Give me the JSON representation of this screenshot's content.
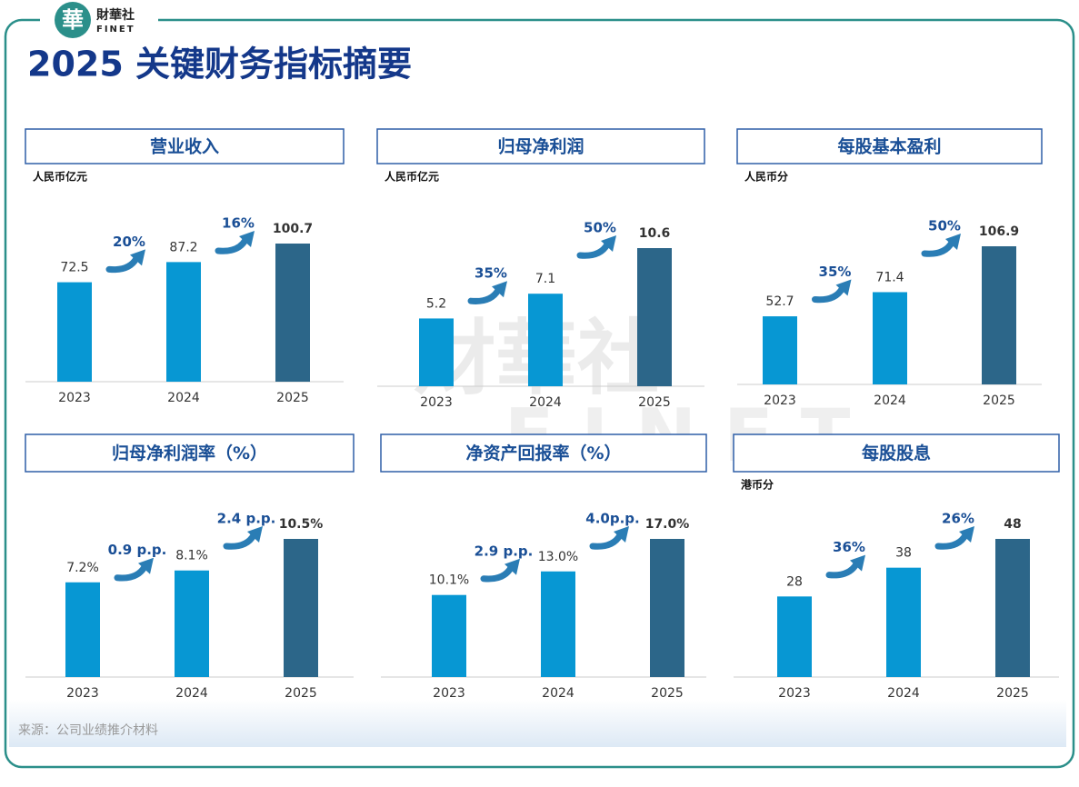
{
  "logo": {
    "mark": "華",
    "name": "財華社",
    "latin": "FINET"
  },
  "watermark": {
    "name": "財華社",
    "latin": "FINET"
  },
  "title": "2025 关键财务指标摘要",
  "source": "来源：公司业绩推介材料",
  "chart_data": [
    {
      "type": "bar",
      "title": "营业收入",
      "unit": "人民币亿元",
      "categories": [
        "2023",
        "2024",
        "2025"
      ],
      "values": [
        72.5,
        87.2,
        100.7
      ],
      "colors": [
        "#0797d3",
        "#0797d3",
        "#2c6689"
      ],
      "annotations": [
        "20%",
        "16%"
      ]
    },
    {
      "type": "bar",
      "title": "归母净利润",
      "unit": "人民币亿元",
      "categories": [
        "2023",
        "2024",
        "2025"
      ],
      "values": [
        5.2,
        7.1,
        10.6
      ],
      "colors": [
        "#0797d3",
        "#0797d3",
        "#2c6689"
      ],
      "annotations": [
        "35%",
        "50%"
      ]
    },
    {
      "type": "bar",
      "title": "每股基本盈利",
      "unit": "人民币分",
      "categories": [
        "2023",
        "2024",
        "2025"
      ],
      "values": [
        52.7,
        71.4,
        106.9
      ],
      "colors": [
        "#0797d3",
        "#0797d3",
        "#2c6689"
      ],
      "annotations": [
        "35%",
        "50%"
      ]
    },
    {
      "type": "bar",
      "title": "归母净利润率（%）",
      "categories": [
        "2023",
        "2024",
        "2025"
      ],
      "values": [
        7.2,
        8.1,
        10.5
      ],
      "value_labels": [
        "7.2%",
        "8.1%",
        "10.5%"
      ],
      "colors": [
        "#0797d3",
        "#0797d3",
        "#2c6689"
      ],
      "annotations": [
        "0.9 p.p.",
        "2.4 p.p."
      ]
    },
    {
      "type": "bar",
      "title": "净资产回报率（%）",
      "categories": [
        "2023",
        "2024",
        "2025"
      ],
      "values": [
        10.1,
        13.0,
        17.0
      ],
      "value_labels": [
        "10.1%",
        "13.0%",
        "17.0%"
      ],
      "colors": [
        "#0797d3",
        "#0797d3",
        "#2c6689"
      ],
      "annotations": [
        "2.9 p.p.",
        "4.0p.p."
      ]
    },
    {
      "type": "bar",
      "title": "每股股息",
      "unit": "港币分",
      "categories": [
        "2023",
        "2024",
        "2025"
      ],
      "values": [
        28,
        38,
        48
      ],
      "colors": [
        "#0797d3",
        "#0797d3",
        "#2c6689"
      ],
      "annotations": [
        "36%",
        "26%"
      ]
    }
  ]
}
